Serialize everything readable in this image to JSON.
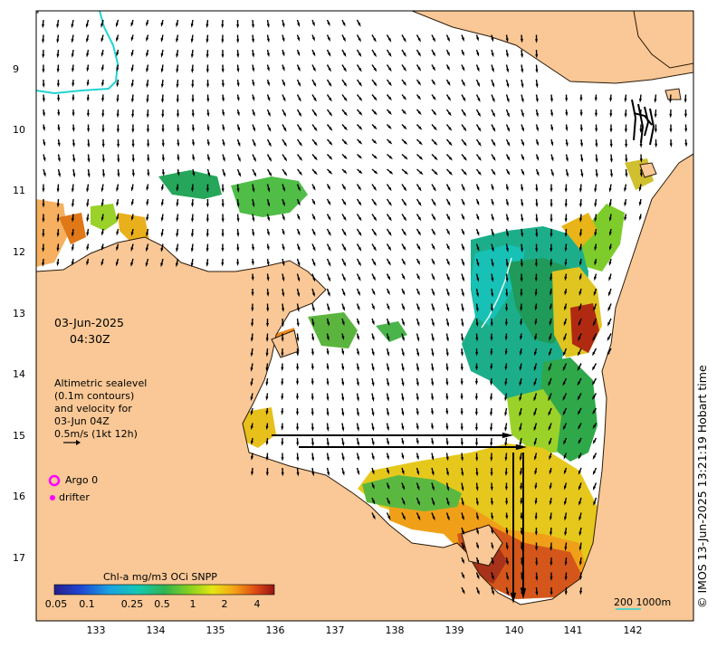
{
  "map": {
    "date": "03-Jun-2025",
    "time": "04:30Z",
    "legend_text": [
      "Altimetric sealevel",
      "(0.1m contours)",
      "and velocity for",
      "03-Jun 04Z",
      "0.5m/s (1kt 12h)"
    ],
    "argo_label": "Argo 0",
    "drifter_label": "drifter",
    "credit": "© IMOS 13-Jun-2025 13:21:19 Hobart time",
    "colorbar_title": "Chl-a mg/m3 OCi SNPP",
    "colorbar_ticks": [
      "0.05",
      "0.1",
      "0.25",
      "0.5",
      "1",
      "2",
      "4"
    ],
    "scale_label": "200  1000m",
    "lat_ticks": [
      "9",
      "10",
      "11",
      "12",
      "13",
      "14",
      "15",
      "16",
      "17"
    ],
    "lon_ticks": [
      "133",
      "134",
      "135",
      "136",
      "137",
      "138",
      "139",
      "140",
      "141",
      "142"
    ],
    "colors": {
      "land": "#f9c896",
      "argo": "#ff00ff",
      "drifter": "#ff00ff",
      "contour_cyan": "#22d3d3"
    }
  }
}
